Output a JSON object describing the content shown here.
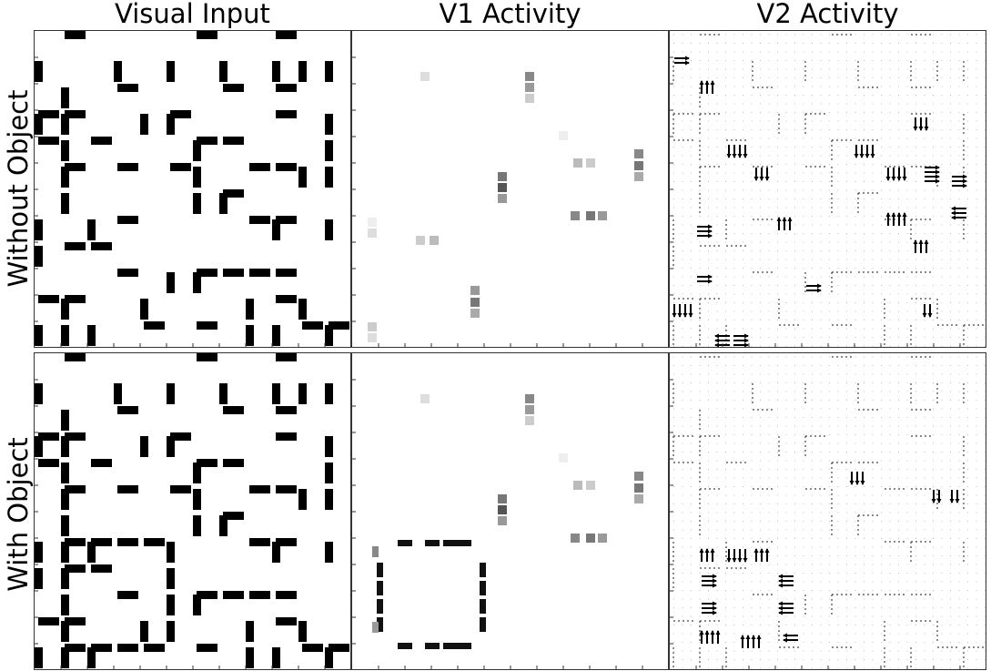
{
  "column_titles": [
    "Visual Input",
    "V1 Activity",
    "V2 Activity"
  ],
  "row_titles": [
    "Without Object",
    "With Object"
  ]
}
